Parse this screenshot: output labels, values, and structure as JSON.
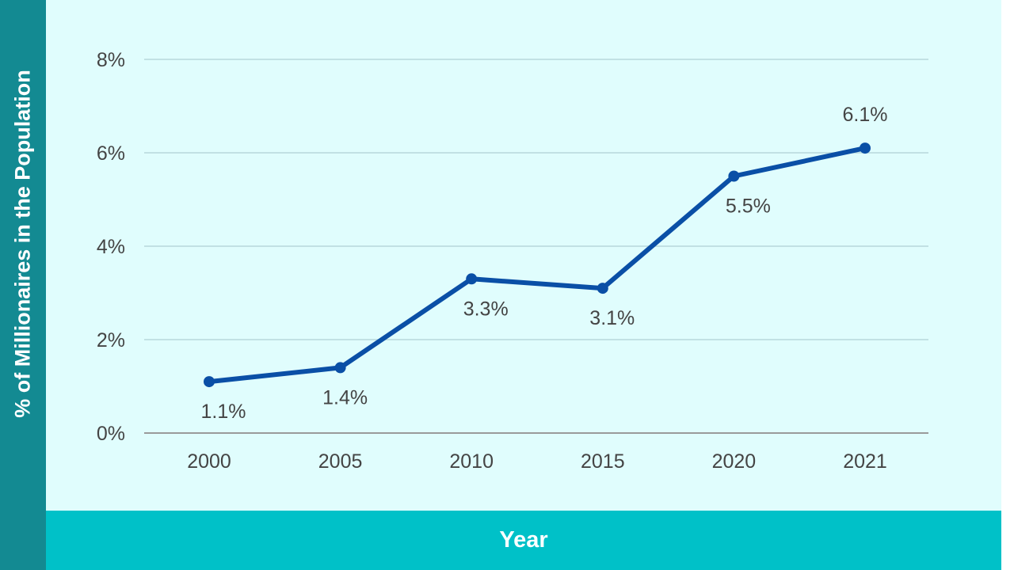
{
  "chart_data": {
    "type": "line",
    "title": "",
    "xlabel": "Year",
    "ylabel": "% of Millionaires in the Population",
    "categories": [
      "2000",
      "2005",
      "2010",
      "2015",
      "2020",
      "2021"
    ],
    "values": [
      1.1,
      1.4,
      3.3,
      3.1,
      5.5,
      6.1
    ],
    "data_labels": [
      "1.1%",
      "1.4%",
      "3.3%",
      "3.1%",
      "5.5%",
      "6.1%"
    ],
    "label_positions": [
      "below",
      "below",
      "below",
      "below",
      "below",
      "above"
    ],
    "yticks": [
      0,
      2,
      4,
      6,
      8
    ],
    "ytick_labels": [
      "0%",
      "2%",
      "4%",
      "6%",
      "8%"
    ],
    "ylim": [
      0,
      8
    ],
    "grid": true,
    "line_color": "#0a4fa6",
    "grid_color": "#b8d8dc",
    "axis_color": "#9a9a9a"
  }
}
